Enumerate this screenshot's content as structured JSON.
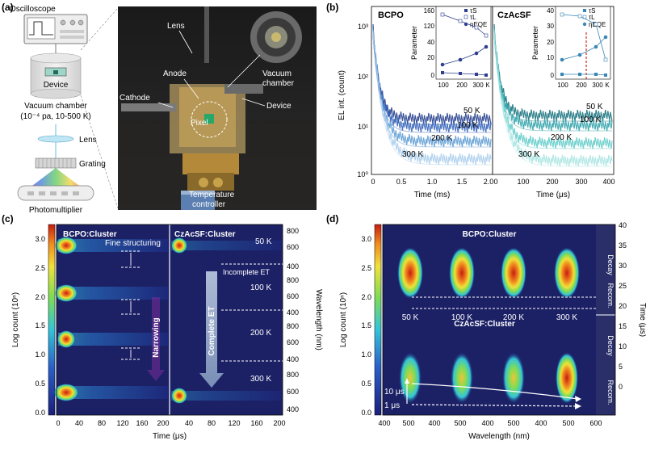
{
  "panel_a": {
    "tag": "(a)",
    "oscilloscope": "Oscilloscope",
    "device": "Device",
    "vacuum_chamber": "Vacuum chamber",
    "chamber_condition": "(10⁻⁴ pa, 10-500 K)",
    "lens": "Lens",
    "grating": "Grating",
    "photomultiplier": "Photomultiplier",
    "photo_labels": {
      "lens": "Lens",
      "anode": "Anode",
      "cathode": "Cathode",
      "pixel": "Pixel",
      "device": "Device",
      "vacuum_chamber_1": "Vacuum",
      "vacuum_chamber_2": "chamber",
      "temperature_controller_1": "Temperature",
      "temperature_controller_2": "controller"
    }
  },
  "panel_b": {
    "tag": "(b)",
    "ylabel": "EL int. (count)",
    "left_title": "BCPO",
    "right_title": "CzAcSF",
    "left_xlabel": "Time (ms)",
    "right_xlabel": "Time (μs)",
    "left_xticks": [
      "0",
      "0.5",
      "1.0",
      "1.5",
      "2.0"
    ],
    "right_xticks": [
      "0",
      "100",
      "200",
      "300",
      "400"
    ],
    "yticks": [
      "10⁰",
      "10¹",
      "10²",
      "10³"
    ],
    "temps_left": [
      "50 K",
      "100 K",
      "200 K",
      "300 K"
    ],
    "temps_right": [
      "50 K",
      "100 K",
      "200 K",
      "300 K"
    ],
    "inset_ylabel": "Parameter",
    "inset_left_yticks": [
      "160",
      "120",
      "40",
      "20",
      "0"
    ],
    "inset_right_yticks": [
      "40",
      "30",
      "20",
      "10",
      "0"
    ],
    "inset_xticks": [
      "100",
      "200",
      "300",
      "K"
    ],
    "legend": [
      "τS",
      "τL",
      "ηEQE"
    ]
  },
  "panel_c": {
    "tag": "(c)",
    "left_title": "BCPO:Cluster",
    "right_title": "CzAcSF:Cluster",
    "ylabel": "Log count (10ⁿ)",
    "right_ylabel": "Wavelength (nm)",
    "xlabel": "Time (μs)",
    "left_xticks": [
      "0",
      "40",
      "80",
      "120",
      "160",
      "200"
    ],
    "right_xticks": [
      "40",
      "80",
      "120",
      "160",
      "200"
    ],
    "colorbar_ticks": [
      "3.0",
      "2.5",
      "2.0",
      "1.5",
      "1.0",
      "0.5",
      "0.0"
    ],
    "wavelength_ticks": [
      "800",
      "600",
      "400"
    ],
    "temps": [
      "50 K",
      "100 K",
      "200 K",
      "300 K"
    ],
    "annotations": {
      "fine": "Fine structuring",
      "narrowing": "Narrowing",
      "incomplete": "Incomplete ET",
      "complete": "Complete ET"
    }
  },
  "panel_d": {
    "tag": "(d)",
    "top_title": "BCPO:Cluster",
    "bottom_title": "CzAcSF:Cluster",
    "ylabel": "Log count (10ⁿ)",
    "right_ylabel": "Time (μs)",
    "xlabel": "Wavelength (nm)",
    "xticks": [
      "400",
      "500",
      "400",
      "500",
      "400",
      "500",
      "400",
      "500",
      "600"
    ],
    "colorbar_ticks": [
      "3.0",
      "2.5",
      "2.0",
      "1.5",
      "1.0",
      "0.5",
      "0.0"
    ],
    "time_ticks": [
      "40",
      "35",
      "30",
      "25",
      "20",
      "15",
      "10",
      "5",
      "0"
    ],
    "temps": [
      "50 K",
      "100 K",
      "200 K",
      "300 K"
    ],
    "decay": "Decay",
    "recom": "Recom.",
    "t10": "10 μs",
    "t1": "1 μs"
  }
}
